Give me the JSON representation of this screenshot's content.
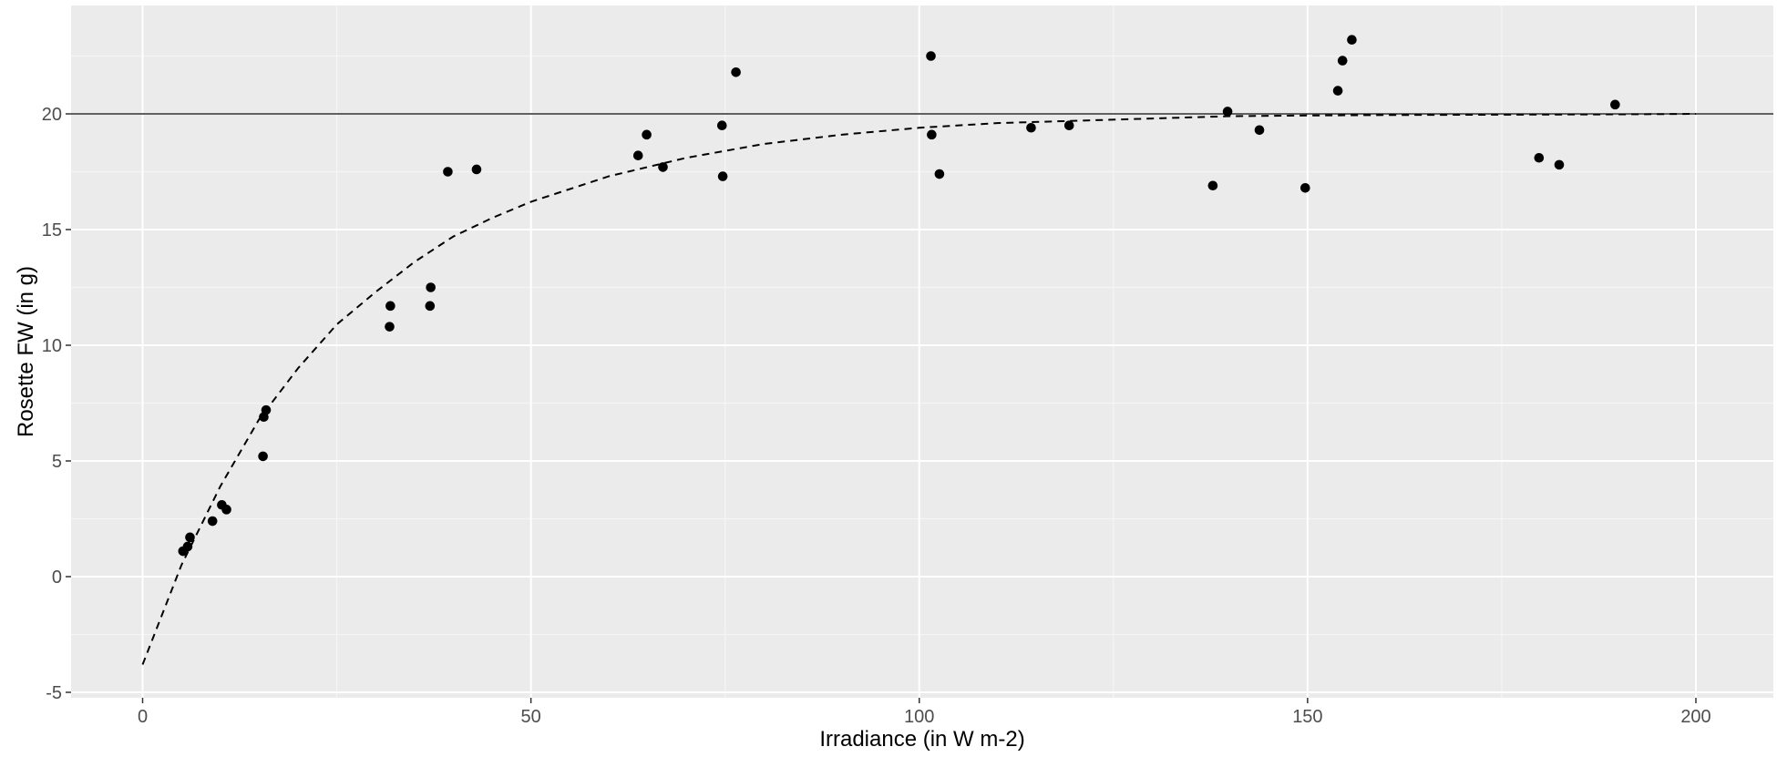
{
  "chart_data": {
    "type": "scatter",
    "title": "",
    "xlabel": "Irradiance (in W m-2)",
    "ylabel": "Rosette FW (in g)",
    "xlim": [
      -10,
      210
    ],
    "ylim": [
      -5,
      24
    ],
    "x_ticks": [
      0,
      50,
      100,
      150,
      200
    ],
    "y_ticks": [
      -5,
      0,
      5,
      10,
      15,
      20
    ],
    "x_tick_labels": [
      "0",
      "50",
      "100",
      "150",
      "200"
    ],
    "y_tick_labels": [
      "-5",
      "0",
      "5",
      "10",
      "15",
      "20"
    ],
    "grid": true,
    "legend": "none",
    "points": [
      {
        "x": 5.2,
        "y": 1.1
      },
      {
        "x": 5.8,
        "y": 1.3
      },
      {
        "x": 6.1,
        "y": 1.7
      },
      {
        "x": 9.0,
        "y": 2.4
      },
      {
        "x": 10.2,
        "y": 3.1
      },
      {
        "x": 10.8,
        "y": 2.9
      },
      {
        "x": 15.5,
        "y": 5.2
      },
      {
        "x": 15.6,
        "y": 6.9
      },
      {
        "x": 15.9,
        "y": 7.2
      },
      {
        "x": 31.8,
        "y": 10.8
      },
      {
        "x": 31.9,
        "y": 11.7
      },
      {
        "x": 37.0,
        "y": 11.7
      },
      {
        "x": 37.1,
        "y": 12.5
      },
      {
        "x": 39.3,
        "y": 17.5
      },
      {
        "x": 43.0,
        "y": 17.6
      },
      {
        "x": 63.8,
        "y": 18.2
      },
      {
        "x": 64.9,
        "y": 19.1
      },
      {
        "x": 67.0,
        "y": 17.7
      },
      {
        "x": 74.6,
        "y": 19.5
      },
      {
        "x": 74.7,
        "y": 17.3
      },
      {
        "x": 76.4,
        "y": 21.8
      },
      {
        "x": 101.5,
        "y": 22.5
      },
      {
        "x": 101.6,
        "y": 19.1
      },
      {
        "x": 102.6,
        "y": 17.4
      },
      {
        "x": 114.4,
        "y": 19.4
      },
      {
        "x": 119.3,
        "y": 19.5
      },
      {
        "x": 137.8,
        "y": 16.9
      },
      {
        "x": 139.7,
        "y": 20.1
      },
      {
        "x": 143.8,
        "y": 19.3
      },
      {
        "x": 149.7,
        "y": 16.8
      },
      {
        "x": 153.9,
        "y": 21.0
      },
      {
        "x": 154.5,
        "y": 22.3
      },
      {
        "x": 155.7,
        "y": 23.2
      },
      {
        "x": 179.8,
        "y": 18.1
      },
      {
        "x": 182.4,
        "y": 17.8
      },
      {
        "x": 189.6,
        "y": 20.4
      }
    ],
    "fit_curve": {
      "style": "dashed",
      "x": [
        0,
        5,
        10,
        15,
        20,
        25,
        30,
        35,
        40,
        45,
        50,
        60,
        70,
        80,
        90,
        100,
        110,
        120,
        130,
        140,
        150,
        160,
        170,
        180,
        190,
        200
      ],
      "y": [
        -3.8,
        0.5,
        3.9,
        6.8,
        9.0,
        10.9,
        12.3,
        13.6,
        14.7,
        15.5,
        16.2,
        17.3,
        18.1,
        18.7,
        19.1,
        19.4,
        19.6,
        19.7,
        19.8,
        19.9,
        19.93,
        19.95,
        19.96,
        19.97,
        19.98,
        20.0
      ]
    },
    "hline": {
      "y": 20,
      "style": "solid"
    }
  },
  "colors": {
    "panel_background": "#ebebeb",
    "grid_major": "#ffffff",
    "grid_minor": "#f5f5f5",
    "points": "#000000",
    "lines": "#000000",
    "tick_text": "#4d4d4d"
  }
}
